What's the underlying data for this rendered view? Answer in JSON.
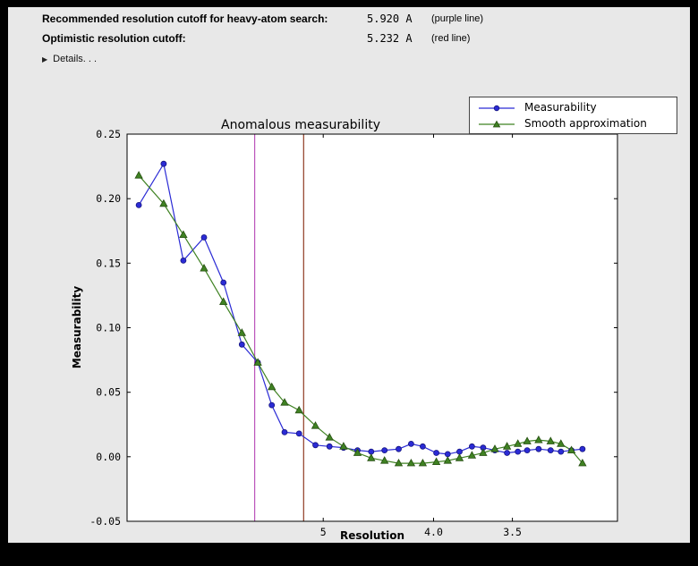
{
  "colors": {
    "panel_bg": "#e8e8e8",
    "outer_bg": "#000000",
    "plot_bg": "#ffffff"
  },
  "header": {
    "rows": [
      {
        "label": "Recommended resolution cutoff for heavy-atom search:",
        "value": "5.920 A",
        "note": "(purple line)"
      },
      {
        "label": "Optimistic resolution cutoff:",
        "value": "5.232 A",
        "note": "(red line)"
      }
    ],
    "details": {
      "label": "Details. . .",
      "expanded": false
    }
  },
  "chart_data": {
    "type": "line",
    "title": "Anomalous measurability",
    "xlabel": "Resolution",
    "ylabel": "Measurability",
    "x_axis_note": "resolution in Angstrom, axis linear in 1/d, decreasing left to right",
    "xlim_d": [
      9.0,
      3.0
    ],
    "ylim": [
      -0.05,
      0.25
    ],
    "xticks": [
      {
        "d": 5.0,
        "label": "5"
      },
      {
        "d": 4.0,
        "label": "4.0"
      },
      {
        "d": 3.5,
        "label": "3.5"
      }
    ],
    "yticks": [
      {
        "v": -0.05,
        "label": "-0.05"
      },
      {
        "v": 0.0,
        "label": "0.00"
      },
      {
        "v": 0.05,
        "label": "0.05"
      },
      {
        "v": 0.1,
        "label": "0.10"
      },
      {
        "v": 0.15,
        "label": "0.15"
      },
      {
        "v": 0.2,
        "label": "0.20"
      },
      {
        "v": 0.25,
        "label": "0.25"
      }
    ],
    "x_d": [
      8.59,
      7.83,
      7.32,
      6.85,
      6.46,
      6.13,
      5.87,
      5.66,
      5.48,
      5.29,
      5.09,
      4.93,
      4.78,
      4.64,
      4.51,
      4.39,
      4.27,
      4.17,
      4.08,
      3.98,
      3.9,
      3.82,
      3.74,
      3.67,
      3.6,
      3.53,
      3.47,
      3.42,
      3.36,
      3.3,
      3.25,
      3.2,
      3.15
    ],
    "series": [
      {
        "name": "Measurability",
        "color": "#2b2bd5",
        "edge": "#15157f",
        "marker": "circle",
        "values": [
          0.195,
          0.227,
          0.152,
          0.17,
          0.135,
          0.087,
          0.073,
          0.04,
          0.019,
          0.018,
          0.009,
          0.008,
          0.007,
          0.005,
          0.004,
          0.005,
          0.006,
          0.01,
          0.008,
          0.003,
          0.002,
          0.004,
          0.008,
          0.007,
          0.005,
          0.003,
          0.004,
          0.005,
          0.006,
          0.005,
          0.004,
          0.005,
          0.006
        ]
      },
      {
        "name": "Smooth approximation",
        "color": "#3f8222",
        "edge": "#274f12",
        "marker": "triangle-up",
        "values": [
          0.218,
          0.196,
          0.172,
          0.146,
          0.12,
          0.096,
          0.073,
          0.054,
          0.042,
          0.036,
          0.024,
          0.015,
          0.008,
          0.003,
          -0.001,
          -0.003,
          -0.005,
          -0.005,
          -0.005,
          -0.004,
          -0.003,
          -0.001,
          0.001,
          0.003,
          0.006,
          0.008,
          0.01,
          0.012,
          0.013,
          0.012,
          0.01,
          0.005,
          -0.005
        ]
      }
    ],
    "vlines": [
      {
        "d": 5.92,
        "color": "#bb55bb",
        "label": "purple line"
      },
      {
        "d": 5.232,
        "color": "#8f3a22",
        "label": "red line"
      }
    ],
    "legend": {
      "position": "upper-right"
    }
  }
}
